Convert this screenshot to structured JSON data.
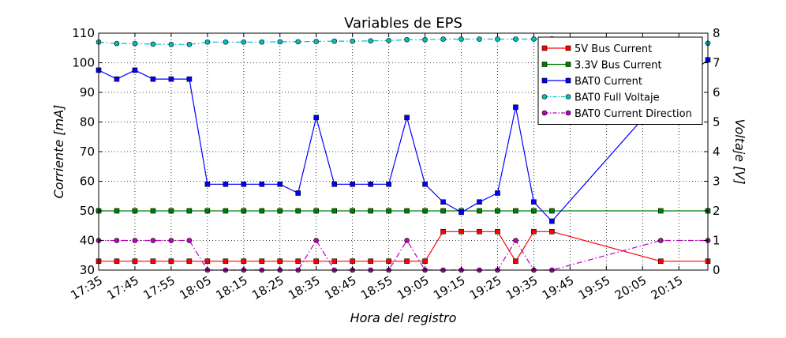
{
  "chart_data": {
    "type": "line",
    "title": "Variables de EPS",
    "xlabel": "Hora del registro",
    "ylabel": "Corriente [mA]",
    "y2label": "Voltaje [V]",
    "ylim": [
      30,
      110
    ],
    "y2lim": [
      0,
      8
    ],
    "grid": true,
    "legend_position": "top-right",
    "x_ticks": [
      "17:35",
      "17:45",
      "17:55",
      "18:05",
      "18:15",
      "18:25",
      "18:35",
      "18:45",
      "18:55",
      "19:05",
      "19:15",
      "19:25",
      "19:35",
      "19:45",
      "19:55",
      "20:05",
      "20:15"
    ],
    "x": [
      "17:35",
      "17:40",
      "17:45",
      "17:50",
      "17:55",
      "18:00",
      "18:05",
      "18:10",
      "18:15",
      "18:20",
      "18:25",
      "18:30",
      "18:35",
      "18:40",
      "18:45",
      "18:50",
      "18:55",
      "19:00",
      "19:05",
      "19:10",
      "19:15",
      "19:20",
      "19:25",
      "19:30",
      "19:35",
      "19:40",
      "20:10",
      "20:23"
    ],
    "y_ticks": [
      30,
      40,
      50,
      60,
      70,
      80,
      90,
      100,
      110
    ],
    "y2_ticks": [
      0,
      1,
      2,
      3,
      4,
      5,
      6,
      7,
      8
    ],
    "series": [
      {
        "name": "5V Bus Current",
        "axis": "left",
        "color": "#ff0000",
        "marker": "square",
        "line": "solid",
        "x": [
          "17:35",
          "17:40",
          "17:45",
          "17:50",
          "17:55",
          "18:00",
          "18:05",
          "18:10",
          "18:15",
          "18:20",
          "18:25",
          "18:30",
          "18:35",
          "18:40",
          "18:45",
          "18:50",
          "18:55",
          "19:00",
          "19:05",
          "19:10",
          "19:15",
          "19:20",
          "19:25",
          "19:30",
          "19:35",
          "19:40",
          "20:10",
          "20:23"
        ],
        "values": [
          33,
          33,
          33,
          33,
          33,
          33,
          33,
          33,
          33,
          33,
          33,
          33,
          33,
          33,
          33,
          33,
          33,
          33,
          33,
          43,
          43,
          43,
          43,
          33,
          43,
          43,
          33,
          33
        ]
      },
      {
        "name": "3.3V Bus Current",
        "axis": "left",
        "color": "#008000",
        "marker": "square",
        "line": "solid",
        "x": [
          "17:35",
          "17:40",
          "17:45",
          "17:50",
          "17:55",
          "18:00",
          "18:05",
          "18:10",
          "18:15",
          "18:20",
          "18:25",
          "18:30",
          "18:35",
          "18:40",
          "18:45",
          "18:50",
          "18:55",
          "19:00",
          "19:05",
          "19:10",
          "19:15",
          "19:20",
          "19:25",
          "19:30",
          "19:35",
          "19:40",
          "20:10",
          "20:23"
        ],
        "values": [
          50,
          50,
          50,
          50,
          50,
          50,
          50,
          50,
          50,
          50,
          50,
          50,
          50,
          50,
          50,
          50,
          50,
          50,
          50,
          50,
          50,
          50,
          50,
          50,
          50,
          50,
          50,
          50
        ]
      },
      {
        "name": "BAT0 Current",
        "axis": "left",
        "color": "#0000ff",
        "marker": "square",
        "line": "solid",
        "x": [
          "17:35",
          "17:40",
          "17:45",
          "17:50",
          "17:55",
          "18:00",
          "18:05",
          "18:10",
          "18:15",
          "18:20",
          "18:25",
          "18:30",
          "18:35",
          "18:40",
          "18:45",
          "18:50",
          "18:55",
          "19:00",
          "19:05",
          "19:10",
          "19:15",
          "19:20",
          "19:25",
          "19:30",
          "19:35",
          "19:40",
          "20:10",
          "20:23"
        ],
        "values": [
          97.5,
          94.5,
          97.5,
          94.5,
          94.5,
          94.5,
          59,
          59,
          59,
          59,
          59,
          56,
          81.5,
          59,
          59,
          59,
          59,
          81.5,
          59,
          53,
          49.5,
          53,
          56,
          85,
          53,
          46.5,
          88,
          101
        ]
      },
      {
        "name": "BAT0 Full Voltaje",
        "axis": "right",
        "color": "#00bfbf",
        "marker": "circle",
        "line": "dashdot",
        "x": [
          "17:35",
          "17:40",
          "17:45",
          "17:50",
          "17:55",
          "18:00",
          "18:05",
          "18:10",
          "18:15",
          "18:20",
          "18:25",
          "18:30",
          "18:35",
          "18:40",
          "18:45",
          "18:50",
          "18:55",
          "19:00",
          "19:05",
          "19:10",
          "19:15",
          "19:20",
          "19:25",
          "19:30",
          "19:35",
          "19:40",
          "20:10",
          "20:23"
        ],
        "values": [
          7.7,
          7.65,
          7.65,
          7.63,
          7.62,
          7.62,
          7.7,
          7.7,
          7.7,
          7.7,
          7.71,
          7.71,
          7.72,
          7.73,
          7.73,
          7.74,
          7.75,
          7.78,
          7.78,
          7.8,
          7.8,
          7.8,
          7.8,
          7.8,
          7.8,
          7.81,
          7.7,
          7.66
        ]
      },
      {
        "name": "BAT0 Current Direction",
        "axis": "right",
        "color": "#bf00bf",
        "marker": "circle",
        "line": "dashdot",
        "x": [
          "17:35",
          "17:40",
          "17:45",
          "17:50",
          "17:55",
          "18:00",
          "18:05",
          "18:10",
          "18:15",
          "18:20",
          "18:25",
          "18:30",
          "18:35",
          "18:40",
          "18:45",
          "18:50",
          "18:55",
          "19:00",
          "19:05",
          "19:10",
          "19:15",
          "19:20",
          "19:25",
          "19:30",
          "19:35",
          "19:40",
          "20:10",
          "20:23"
        ],
        "values": [
          1,
          1,
          1,
          1,
          1,
          1,
          0,
          0,
          0,
          0,
          0,
          0,
          1,
          0,
          0,
          0,
          0,
          1,
          0,
          0,
          0,
          0,
          0,
          1,
          0,
          0,
          1,
          1
        ]
      }
    ]
  }
}
